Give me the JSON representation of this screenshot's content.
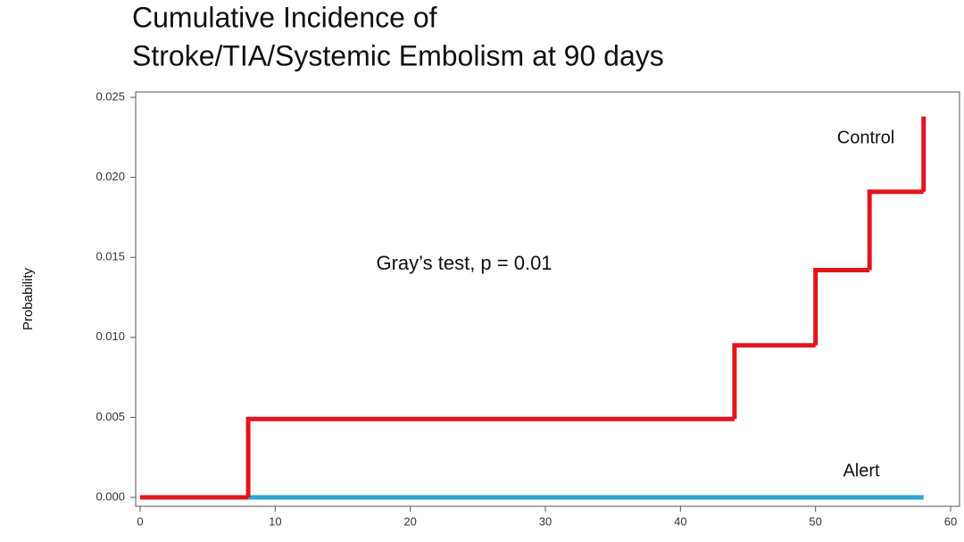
{
  "chart_data": {
    "type": "step",
    "title": [
      "Cumulative Incidence of",
      "Stroke/TIA/Systemic Embolism at 90 days"
    ],
    "ylabel": "Probability",
    "annotation": "Gray’s test, p = 0.01",
    "series": [
      {
        "name": "Alert",
        "color": "#2ba6cf",
        "x": [
          0,
          58
        ],
        "values": [
          0,
          0
        ]
      },
      {
        "name": "Control",
        "color": "#e3141b",
        "x": [
          0,
          8,
          44,
          50,
          54,
          58
        ],
        "values": [
          0,
          0.0049,
          0.0095,
          0.0142,
          0.0191,
          0.0238
        ]
      }
    ],
    "xlim": [
      0,
      60
    ],
    "xticks": [
      0,
      10,
      20,
      30,
      40,
      50,
      60
    ],
    "ylim": [
      0,
      0.025
    ],
    "yticks": [
      {
        "value": 0,
        "label": "0.000"
      },
      {
        "value": 0.005,
        "label": "0.005"
      },
      {
        "value": 0.01,
        "label": "0.010"
      },
      {
        "value": 0.015,
        "label": "0.015"
      },
      {
        "value": 0.02,
        "label": "0.020"
      },
      {
        "value": 0.025,
        "label": "0.025"
      }
    ],
    "grid": false
  }
}
